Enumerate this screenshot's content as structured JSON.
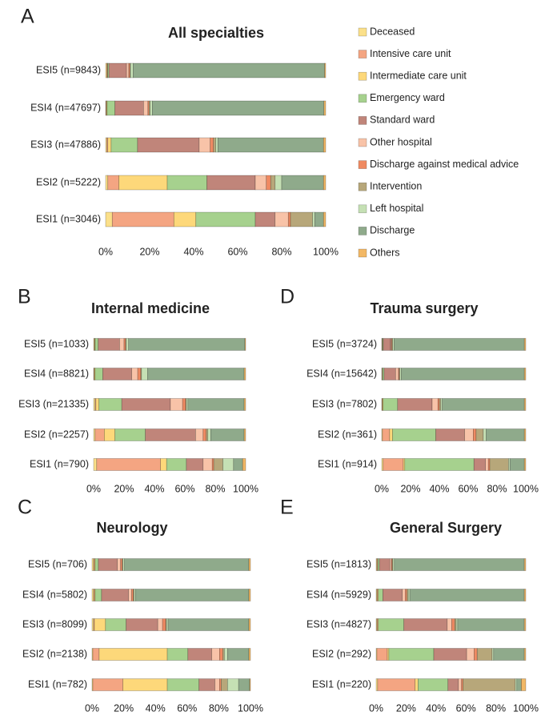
{
  "chart_data": [
    {
      "type": "stacked-barh",
      "label": "A",
      "title": "All specialties",
      "legend": "right",
      "categories": [
        "ESI5 (n=9843)",
        "ESI4 (n=47697)",
        "ESI3 (n=47886)",
        "ESI2 (n=5222)",
        "ESI1 (n=3046)"
      ],
      "xlim": [
        0,
        100
      ],
      "xticks": [
        {
          "value": 0,
          "label": "0%"
        },
        {
          "value": 20,
          "label": "20%"
        },
        {
          "value": 40,
          "label": "40%"
        },
        {
          "value": 60,
          "label": "60%"
        },
        {
          "value": 80,
          "label": "80%"
        },
        {
          "value": 100,
          "label": "100%"
        }
      ],
      "series": [
        {
          "name": "Deceased",
          "color": "#fbe08a",
          "values": [
            0.5,
            0.2,
            0.5,
            1,
            3
          ]
        },
        {
          "name": "Intensive care unit",
          "color": "#f4a582",
          "values": [
            0.3,
            0.2,
            0.5,
            5,
            28
          ]
        },
        {
          "name": "Intermediate care unit",
          "color": "#fdd87a",
          "values": [
            0.2,
            0.3,
            1.5,
            22,
            10
          ]
        },
        {
          "name": "Emergency ward",
          "color": "#a6d18e",
          "values": [
            0.5,
            3.5,
            12,
            18,
            27
          ]
        },
        {
          "name": "Standard ward",
          "color": "#c0857a",
          "values": [
            8,
            13,
            28,
            22,
            9
          ]
        },
        {
          "name": "Other hospital",
          "color": "#f8c3a8",
          "values": [
            1,
            2,
            5,
            5,
            6
          ]
        },
        {
          "name": "Discharge against medical advice",
          "color": "#ef8a62",
          "values": [
            0.5,
            0.5,
            1.5,
            2,
            1
          ]
        },
        {
          "name": "Intervention",
          "color": "#b7a77a",
          "values": [
            0.3,
            0.5,
            1,
            2,
            10
          ]
        },
        {
          "name": "Left hospital",
          "color": "#c5e0b4",
          "values": [
            1.2,
            1,
            1,
            3,
            1
          ]
        },
        {
          "name": "Discharge",
          "color": "#8faa8b",
          "values": [
            87,
            78,
            48,
            19,
            4
          ]
        },
        {
          "name": "Others",
          "color": "#f2b866",
          "values": [
            0.5,
            0.8,
            1,
            1,
            1
          ]
        }
      ]
    },
    {
      "type": "stacked-barh",
      "label": "B",
      "title": "Internal medicine",
      "categories": [
        "ESI5 (n=1033)",
        "ESI4 (n=8821)",
        "ESI3 (n=21335)",
        "ESI2 (n=2257)",
        "ESI1 (n=790)"
      ],
      "xlim": [
        0,
        100
      ],
      "xticks": [
        {
          "value": 0,
          "label": "0%"
        },
        {
          "value": 20,
          "label": "20%"
        },
        {
          "value": 40,
          "label": "40%"
        },
        {
          "value": 60,
          "label": "60%"
        },
        {
          "value": 80,
          "label": "80%"
        },
        {
          "value": 100,
          "label": "100%"
        }
      ],
      "series": [
        {
          "color": "#fbe08a",
          "values": [
            0.5,
            0.3,
            1,
            1,
            2
          ]
        },
        {
          "color": "#f4a582",
          "values": [
            0.2,
            0.2,
            0.5,
            6,
            42
          ]
        },
        {
          "color": "#fdd87a",
          "values": [
            0.3,
            0.5,
            2,
            7,
            4
          ]
        },
        {
          "color": "#a6d18e",
          "values": [
            2,
            5,
            15,
            20,
            13
          ]
        },
        {
          "color": "#c0857a",
          "values": [
            14,
            19,
            32,
            33,
            11
          ]
        },
        {
          "color": "#f8c3a8",
          "values": [
            3,
            4,
            8,
            5,
            6
          ]
        },
        {
          "color": "#ef8a62",
          "values": [
            1,
            2,
            2,
            2,
            1
          ]
        },
        {
          "color": "#b7a77a",
          "values": [
            0.5,
            0.5,
            0.5,
            1,
            6
          ]
        },
        {
          "color": "#c5e0b4",
          "values": [
            1.5,
            4,
            1,
            2,
            7
          ]
        },
        {
          "color": "#8faa8b",
          "values": [
            76.5,
            63.5,
            37,
            22,
            6
          ]
        },
        {
          "color": "#f2b866",
          "values": [
            0.5,
            1,
            1,
            1,
            2
          ]
        }
      ]
    },
    {
      "type": "stacked-barh",
      "label": "C",
      "title": "Neurology",
      "categories": [
        "ESI5 (n=706)",
        "ESI4 (n=5802)",
        "ESI3 (n=8099)",
        "ESI2 (n=2138)",
        "ESI1 (n=782)"
      ],
      "xlim": [
        0,
        100
      ],
      "xticks": [
        {
          "value": 0,
          "label": "0%"
        },
        {
          "value": 20,
          "label": "20%"
        },
        {
          "value": 40,
          "label": "40%"
        },
        {
          "value": 60,
          "label": "60%"
        },
        {
          "value": 80,
          "label": "80%"
        },
        {
          "value": 100,
          "label": "100%"
        }
      ],
      "series": [
        {
          "color": "#fbe08a",
          "values": [
            1,
            1,
            1,
            0.5,
            0.5
          ]
        },
        {
          "color": "#f4a582",
          "values": [
            0.5,
            0.5,
            0.5,
            4,
            19
          ]
        },
        {
          "color": "#fdd87a",
          "values": [
            0.5,
            0.5,
            7,
            43,
            28
          ]
        },
        {
          "color": "#a6d18e",
          "values": [
            2,
            4,
            13,
            13,
            20
          ]
        },
        {
          "color": "#c0857a",
          "values": [
            12,
            17,
            20,
            15,
            10
          ]
        },
        {
          "color": "#f8c3a8",
          "values": [
            2,
            2,
            3,
            5,
            3
          ]
        },
        {
          "color": "#ef8a62",
          "values": [
            1,
            1,
            2,
            2,
            1
          ]
        },
        {
          "color": "#b7a77a",
          "values": [
            0.5,
            0.5,
            0.5,
            1,
            4
          ]
        },
        {
          "color": "#c5e0b4",
          "values": [
            1,
            1,
            1,
            2,
            7
          ]
        },
        {
          "color": "#8faa8b",
          "values": [
            78.5,
            71.5,
            51,
            13.5,
            7
          ]
        },
        {
          "color": "#f2b866",
          "values": [
            1,
            1,
            1,
            1,
            0.5
          ]
        }
      ]
    },
    {
      "type": "stacked-barh",
      "label": "D",
      "title": "Trauma surgery",
      "categories": [
        "ESI5 (n=3724)",
        "ESI4 (n=15642)",
        "ESI3 (n=7802)",
        "ESI2 (n=361)",
        "ESI1 (n=914)"
      ],
      "xlim": [
        0,
        100
      ],
      "xticks": [
        {
          "value": 0,
          "label": "0%"
        },
        {
          "value": 20,
          "label": "20%"
        },
        {
          "value": 40,
          "label": "40%"
        },
        {
          "value": 60,
          "label": "60%"
        },
        {
          "value": 80,
          "label": "80%"
        },
        {
          "value": 100,
          "label": "100%"
        }
      ],
      "series": [
        {
          "color": "#fbe08a",
          "values": [
            0.2,
            0.2,
            0.3,
            0.5,
            1
          ]
        },
        {
          "color": "#f4a582",
          "values": [
            0.2,
            0.2,
            0.2,
            5,
            14
          ]
        },
        {
          "color": "#fdd87a",
          "values": [
            0.2,
            0.2,
            0.5,
            2,
            1
          ]
        },
        {
          "color": "#a6d18e",
          "values": [
            0.5,
            1,
            10,
            30,
            48
          ]
        },
        {
          "color": "#c0857a",
          "values": [
            5,
            8,
            24,
            20,
            8
          ]
        },
        {
          "color": "#f8c3a8",
          "values": [
            0.5,
            2,
            4,
            6,
            2
          ]
        },
        {
          "color": "#ef8a62",
          "values": [
            0.5,
            0.5,
            1,
            2,
            1
          ]
        },
        {
          "color": "#b7a77a",
          "values": [
            0.5,
            0.5,
            1,
            5,
            13
          ]
        },
        {
          "color": "#c5e0b4",
          "values": [
            1,
            1,
            1,
            2,
            1
          ]
        },
        {
          "color": "#8faa8b",
          "values": [
            90.4,
            85.4,
            57,
            26.5,
            10
          ]
        },
        {
          "color": "#f2b866",
          "values": [
            1,
            1,
            1,
            1,
            1
          ]
        }
      ]
    },
    {
      "type": "stacked-barh",
      "label": "E",
      "title": "General Surgery",
      "categories": [
        "ESI5 (n=1813)",
        "ESI4 (n=5929)",
        "ESI3 (n=4827)",
        "ESI2 (n=292)",
        "ESI1 (n=220)"
      ],
      "xlim": [
        0,
        100
      ],
      "xticks": [
        {
          "value": 0,
          "label": "0%"
        },
        {
          "value": 20,
          "label": "20%"
        },
        {
          "value": 40,
          "label": "40%"
        },
        {
          "value": 60,
          "label": "60%"
        },
        {
          "value": 80,
          "label": "80%"
        },
        {
          "value": 100,
          "label": "100%"
        }
      ],
      "series": [
        {
          "color": "#fbe08a",
          "values": [
            0.5,
            0.5,
            0.5,
            0.5,
            1
          ]
        },
        {
          "color": "#f4a582",
          "values": [
            0.5,
            0.5,
            0.5,
            7,
            25
          ]
        },
        {
          "color": "#fdd87a",
          "values": [
            0.2,
            0.5,
            0.5,
            1,
            2
          ]
        },
        {
          "color": "#a6d18e",
          "values": [
            1,
            3,
            17,
            30,
            20
          ]
        },
        {
          "color": "#c0857a",
          "values": [
            7,
            13,
            29,
            22,
            7
          ]
        },
        {
          "color": "#f8c3a8",
          "values": [
            1,
            2,
            3,
            5,
            2
          ]
        },
        {
          "color": "#ef8a62",
          "values": [
            0.5,
            1,
            2,
            2,
            1
          ]
        },
        {
          "color": "#b7a77a",
          "values": [
            0.5,
            1,
            1,
            10,
            35
          ]
        },
        {
          "color": "#c5e0b4",
          "values": [
            1,
            1,
            1,
            1,
            1
          ]
        },
        {
          "color": "#8faa8b",
          "values": [
            86.8,
            76.5,
            44.5,
            20.5,
            3
          ]
        },
        {
          "color": "#f2b866",
          "values": [
            1,
            1,
            1,
            1,
            3
          ]
        }
      ]
    }
  ]
}
